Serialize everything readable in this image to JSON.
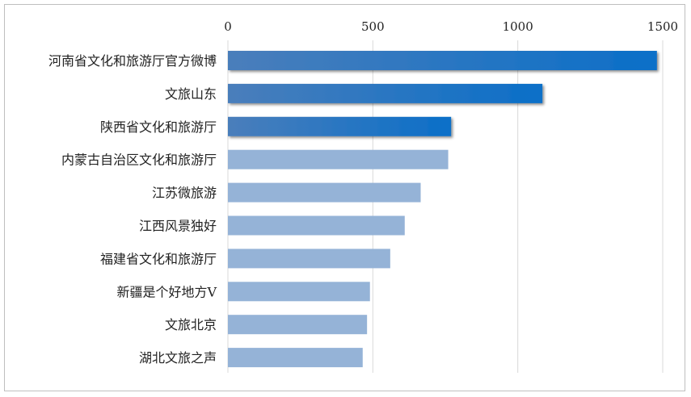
{
  "chart_data": {
    "type": "bar",
    "orientation": "horizontal",
    "categories": [
      "河南省文化和旅游厅官方微博",
      "文旅山东",
      "陕西省文化和旅游厅",
      "内蒙古自治区文化和旅游厅",
      "江苏微旅游",
      "江西风景独好",
      "福建省文化和旅游厅",
      "新疆是个好地方V",
      "文旅北京",
      "湖北文旅之声"
    ],
    "values": [
      1480,
      1085,
      770,
      760,
      665,
      610,
      560,
      490,
      480,
      465
    ],
    "highlight_count": 3,
    "xlim": [
      0,
      1500
    ],
    "xticks": [
      "0",
      "500",
      "1000",
      "1500"
    ],
    "x_axis_position": "top",
    "grid": true,
    "colors": {
      "highlight_start": "#4a7ebb",
      "highlight_end": "#0b6fc8",
      "normal": "#95b3d7",
      "grid": "#d9d9d9"
    }
  }
}
